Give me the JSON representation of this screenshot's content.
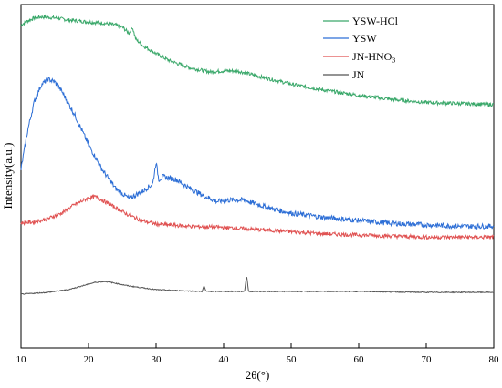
{
  "chart_data": {
    "type": "line",
    "xlabel": "2θ(°)",
    "ylabel": "Intensity(a.u.)",
    "xlim": [
      10,
      80
    ],
    "xticks": [
      10,
      20,
      30,
      40,
      50,
      60,
      70,
      80
    ],
    "ytick_labels": "none",
    "legend_position": "top-right",
    "series": [
      {
        "name": "YSW-HCl",
        "color": "#3aa86a",
        "offset": 3,
        "points": [
          [
            10,
            0.88
          ],
          [
            11,
            0.92
          ],
          [
            12,
            0.95
          ],
          [
            13,
            0.96
          ],
          [
            15,
            0.95
          ],
          [
            17,
            0.93
          ],
          [
            20,
            0.91
          ],
          [
            22,
            0.9
          ],
          [
            24,
            0.88
          ],
          [
            25,
            0.86
          ],
          [
            26,
            0.8
          ],
          [
            26.5,
            0.86
          ],
          [
            27,
            0.74
          ],
          [
            28,
            0.68
          ],
          [
            30,
            0.6
          ],
          [
            32,
            0.53
          ],
          [
            35,
            0.46
          ],
          [
            38,
            0.42
          ],
          [
            40,
            0.43
          ],
          [
            42,
            0.43
          ],
          [
            45,
            0.38
          ],
          [
            50,
            0.3
          ],
          [
            55,
            0.24
          ],
          [
            60,
            0.19
          ],
          [
            65,
            0.15
          ],
          [
            70,
            0.12
          ],
          [
            75,
            0.11
          ],
          [
            80,
            0.1
          ]
        ]
      },
      {
        "name": "YSW",
        "color": "#2e6fd6",
        "offset": 2,
        "points": [
          [
            10,
            0.35
          ],
          [
            11,
            0.62
          ],
          [
            12,
            0.82
          ],
          [
            13,
            0.93
          ],
          [
            14,
            0.97
          ],
          [
            15,
            0.95
          ],
          [
            16,
            0.89
          ],
          [
            18,
            0.72
          ],
          [
            20,
            0.52
          ],
          [
            22,
            0.35
          ],
          [
            24,
            0.22
          ],
          [
            26,
            0.15
          ],
          [
            28,
            0.2
          ],
          [
            29.5,
            0.25
          ],
          [
            30,
            0.4
          ],
          [
            30.4,
            0.28
          ],
          [
            31,
            0.3
          ],
          [
            33,
            0.28
          ],
          [
            35,
            0.22
          ],
          [
            37,
            0.17
          ],
          [
            39,
            0.13
          ],
          [
            41,
            0.14
          ],
          [
            43,
            0.14
          ],
          [
            45,
            0.11
          ],
          [
            48,
            0.07
          ],
          [
            50,
            0.05
          ],
          [
            55,
            0.02
          ],
          [
            60,
            0.0
          ],
          [
            65,
            -0.02
          ],
          [
            70,
            -0.03
          ],
          [
            75,
            -0.04
          ],
          [
            80,
            -0.04
          ]
        ]
      },
      {
        "name": "JN-HNO₃",
        "color": "#e05252",
        "offset": 1,
        "points": [
          [
            10,
            0.46
          ],
          [
            12,
            0.47
          ],
          [
            14,
            0.5
          ],
          [
            16,
            0.55
          ],
          [
            18,
            0.63
          ],
          [
            20,
            0.69
          ],
          [
            21,
            0.7
          ],
          [
            22,
            0.67
          ],
          [
            24,
            0.6
          ],
          [
            26,
            0.53
          ],
          [
            28,
            0.48
          ],
          [
            30,
            0.45
          ],
          [
            35,
            0.43
          ],
          [
            40,
            0.42
          ],
          [
            45,
            0.4
          ],
          [
            50,
            0.38
          ],
          [
            55,
            0.36
          ],
          [
            60,
            0.35
          ],
          [
            65,
            0.34
          ],
          [
            70,
            0.33
          ],
          [
            75,
            0.33
          ],
          [
            80,
            0.33
          ]
        ]
      },
      {
        "name": "JN",
        "color": "#555555",
        "offset": 0,
        "points": [
          [
            10,
            0.37
          ],
          [
            14,
            0.39
          ],
          [
            17,
            0.42
          ],
          [
            19,
            0.46
          ],
          [
            21,
            0.5
          ],
          [
            22.5,
            0.51
          ],
          [
            24,
            0.49
          ],
          [
            26,
            0.46
          ],
          [
            28,
            0.44
          ],
          [
            30,
            0.42
          ],
          [
            33,
            0.41
          ],
          [
            36.8,
            0.4
          ],
          [
            37.1,
            0.46
          ],
          [
            37.4,
            0.4
          ],
          [
            40,
            0.4
          ],
          [
            43.1,
            0.4
          ],
          [
            43.4,
            0.58
          ],
          [
            43.7,
            0.4
          ],
          [
            50,
            0.4
          ],
          [
            60,
            0.4
          ],
          [
            70,
            0.39
          ],
          [
            80,
            0.39
          ]
        ]
      }
    ]
  }
}
